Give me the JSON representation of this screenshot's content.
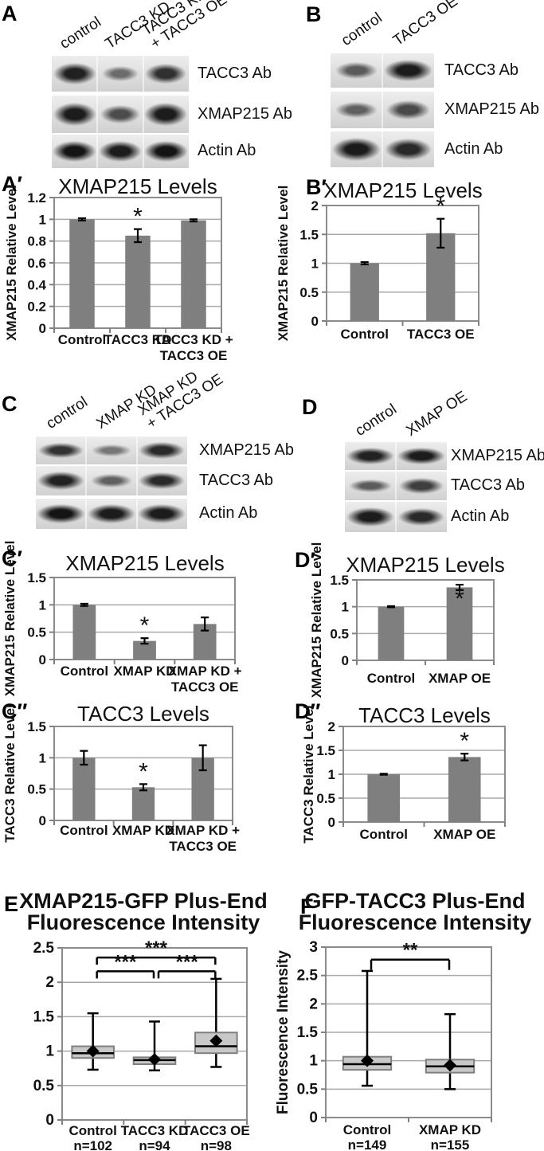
{
  "colors": {
    "bar": "#7f7f7f",
    "box_fill": "#c8c8c8",
    "box_border": "#7f7f7f",
    "grid": "#a9a9a9",
    "plot_border": "#8c8c8c",
    "axis": "#808080",
    "error_bar": "#000000",
    "band": "#101010",
    "text": "#111111",
    "background": "#ffffff"
  },
  "panels": {
    "A": {
      "label": "A",
      "lanes": [
        "control",
        "TACC3 KD",
        "TACC3 KD\n+ TACC3 OE"
      ],
      "rows": [
        {
          "antibody": "TACC3 Ab",
          "bands": [
            0.92,
            0.38,
            0.8
          ]
        },
        {
          "antibody": "XMAP215 Ab",
          "bands": [
            0.95,
            0.6,
            0.95
          ]
        },
        {
          "antibody": "Actin Ab",
          "bands": [
            1,
            0.95,
            1
          ]
        }
      ]
    },
    "B": {
      "label": "B",
      "lanes": [
        "control",
        "TACC3 OE"
      ],
      "rows": [
        {
          "antibody": "TACC3 Ab",
          "bands": [
            0.5,
            0.95
          ]
        },
        {
          "antibody": "XMAP215 Ab",
          "bands": [
            0.45,
            0.62
          ]
        },
        {
          "antibody": "Actin Ab",
          "bands": [
            0.95,
            0.85
          ]
        }
      ]
    },
    "C": {
      "label": "C",
      "lanes": [
        "control",
        "XMAP KD",
        "XMAP KD\n+ TACC3 OE"
      ],
      "rows": [
        {
          "antibody": "XMAP215 Ab",
          "bands": [
            0.78,
            0.3,
            0.85
          ]
        },
        {
          "antibody": "TACC3 Ab",
          "bands": [
            0.9,
            0.45,
            0.85
          ]
        },
        {
          "antibody": "Actin Ab",
          "bands": [
            1,
            0.95,
            0.95
          ]
        }
      ]
    },
    "D": {
      "label": "D",
      "lanes": [
        "control",
        "XMAP OE"
      ],
      "rows": [
        {
          "antibody": "XMAP215 Ab",
          "bands": [
            0.9,
            0.95
          ]
        },
        {
          "antibody": "TACC3 Ab",
          "bands": [
            0.5,
            0.7
          ]
        },
        {
          "antibody": "Actin Ab",
          "bands": [
            0.95,
            0.85
          ]
        }
      ]
    },
    "A_prime": {
      "label": "A′"
    },
    "B_prime": {
      "label": "B′"
    },
    "C_prime": {
      "label": "C′"
    },
    "D_prime": {
      "label": "D′"
    },
    "C_dprime": {
      "label": "C″"
    },
    "D_dprime": {
      "label": "D″"
    },
    "E": {
      "label": "E"
    },
    "F": {
      "label": "F"
    }
  },
  "chart_data": [
    {
      "panel": "A_prime",
      "type": "bar",
      "title": "XMAP215 Levels",
      "xlabel": "",
      "ylabel": "XMAP215 Relative Level",
      "ylim": [
        0,
        1.2
      ],
      "yticks": [
        0,
        0.2,
        0.4,
        0.6,
        0.8,
        1,
        1.2
      ],
      "grid": true,
      "categories": [
        "Control",
        "TACC3 KD",
        "TACC3 KD +\nTACC3 OE"
      ],
      "values": [
        1.0,
        0.85,
        0.99
      ],
      "errors": [
        0.01,
        0.06,
        0.01
      ],
      "sig": [
        "",
        "*",
        ""
      ]
    },
    {
      "panel": "B_prime",
      "type": "bar",
      "title": "XMAP215 Levels",
      "xlabel": "",
      "ylabel": "XMAP215 Relative Level",
      "ylim": [
        0,
        2
      ],
      "yticks": [
        0,
        0.5,
        1,
        1.5,
        2
      ],
      "grid": true,
      "categories": [
        "Control",
        "TACC3 OE"
      ],
      "values": [
        1.0,
        1.52
      ],
      "errors": [
        0.02,
        0.25
      ],
      "sig": [
        "",
        "*"
      ]
    },
    {
      "panel": "C_prime",
      "type": "bar",
      "title": "XMAP215 Levels",
      "xlabel": "",
      "ylabel": "XMAP215 Relative Level",
      "ylim": [
        0,
        1.5
      ],
      "yticks": [
        0,
        0.5,
        1,
        1.5
      ],
      "grid": true,
      "categories": [
        "Control",
        "XMAP KD",
        "XMAP KD +\nTACC3 OE"
      ],
      "values": [
        1.0,
        0.34,
        0.65
      ],
      "errors": [
        0.02,
        0.05,
        0.12
      ],
      "sig": [
        "",
        "*",
        ""
      ]
    },
    {
      "panel": "D_prime",
      "type": "bar",
      "title": "XMAP215 Levels",
      "xlabel": "",
      "ylabel": "XMAP215 Relative Level",
      "ylim": [
        0,
        1.5
      ],
      "yticks": [
        0,
        0.5,
        1,
        1.5
      ],
      "grid": true,
      "categories": [
        "Control",
        "XMAP OE"
      ],
      "values": [
        1.0,
        1.36
      ],
      "errors": [
        0.01,
        0.05
      ],
      "sig": [
        "",
        "*"
      ],
      "sig_inside": true
    },
    {
      "panel": "C_dprime",
      "type": "bar",
      "title": "TACC3 Levels",
      "xlabel": "",
      "ylabel": "TACC3 Relative Level",
      "ylim": [
        0,
        1.5
      ],
      "yticks": [
        0,
        0.5,
        1,
        1.5
      ],
      "grid": true,
      "categories": [
        "Control",
        "XMAP KD",
        "XMAP KD +\nTACC3 OE"
      ],
      "values": [
        1.0,
        0.53,
        1.0
      ],
      "errors": [
        0.11,
        0.05,
        0.2
      ],
      "sig": [
        "",
        "*",
        ""
      ]
    },
    {
      "panel": "D_dprime",
      "type": "bar",
      "title": "TACC3 Levels",
      "xlabel": "",
      "ylabel": "TACC3 Relative Level",
      "ylim": [
        0,
        2
      ],
      "yticks": [
        0,
        0.5,
        1,
        1.5,
        2
      ],
      "grid": true,
      "categories": [
        "Control",
        "XMAP OE"
      ],
      "values": [
        1.0,
        1.36
      ],
      "errors": [
        0.01,
        0.07
      ],
      "sig": [
        "",
        "*"
      ]
    },
    {
      "panel": "E",
      "type": "box",
      "title": "XMAP215-GFP Plus-End\nFluorescence Intensity",
      "xlabel": "",
      "ylabel": "",
      "ylim": [
        0,
        2.5
      ],
      "yticks": [
        0,
        0.5,
        1,
        1.5,
        2,
        2.5
      ],
      "grid": true,
      "categories": [
        "Control",
        "TACC3 KD",
        "TACC3 OE"
      ],
      "ns": [
        "n=102",
        "n=94",
        "n=98"
      ],
      "boxes": [
        {
          "low": 0.73,
          "q1": 0.9,
          "median": 0.97,
          "q3": 1.07,
          "high": 1.55,
          "mean": 1.0
        },
        {
          "low": 0.72,
          "q1": 0.81,
          "median": 0.87,
          "q3": 0.91,
          "high": 1.43,
          "mean": 0.88
        },
        {
          "low": 0.77,
          "q1": 0.97,
          "median": 1.07,
          "q3": 1.27,
          "high": 2.05,
          "mean": 1.15
        }
      ],
      "brackets": [
        {
          "from": 0,
          "to": 2,
          "y": 2.36,
          "label": "***"
        },
        {
          "from": 0,
          "to": 1,
          "y": 2.16,
          "label": "***"
        },
        {
          "from": 1,
          "to": 2,
          "y": 2.16,
          "label": "***"
        }
      ]
    },
    {
      "panel": "F",
      "type": "box",
      "title": "GFP-TACC3 Plus-End\nFluorescence Intensity",
      "xlabel": "",
      "ylabel": "Fluorescence Intensity",
      "ylim": [
        0,
        3
      ],
      "yticks": [
        0,
        0.5,
        1,
        1.5,
        2,
        2.5,
        3
      ],
      "grid": true,
      "categories": [
        "Control",
        "XMAP KD"
      ],
      "ns": [
        "n=149",
        "n=155"
      ],
      "boxes": [
        {
          "low": 0.56,
          "q1": 0.84,
          "median": 0.94,
          "q3": 1.07,
          "high": 2.58,
          "mean": 1.0
        },
        {
          "low": 0.5,
          "q1": 0.79,
          "median": 0.9,
          "q3": 1.02,
          "high": 1.82,
          "mean": 0.92
        }
      ],
      "brackets": [
        {
          "from": 0,
          "to": 1,
          "y": 2.78,
          "label": "**"
        }
      ]
    }
  ]
}
